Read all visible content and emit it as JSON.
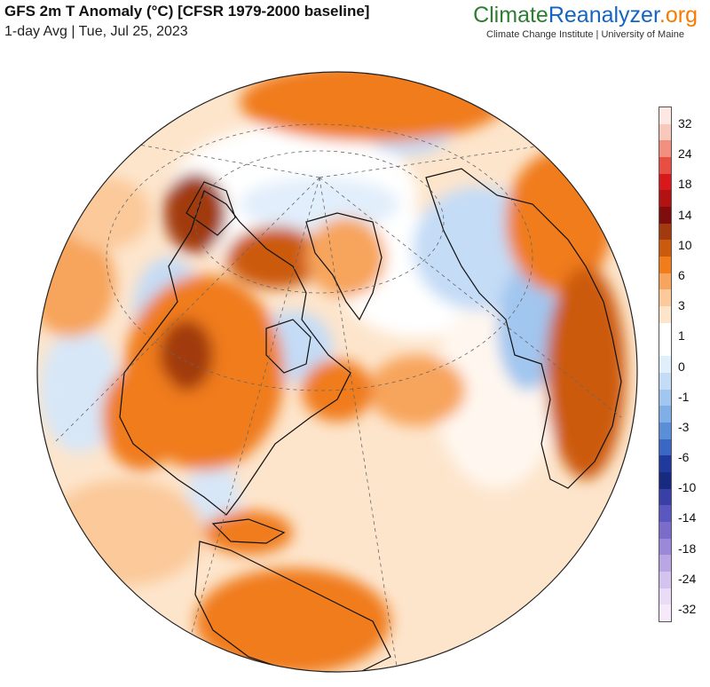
{
  "header": {
    "title": "GFS 2m T Anomaly (°C) [CFSR 1979-2000 baseline]",
    "subtitle": "1-day Avg | Tue, Jul 25, 2023"
  },
  "brand": {
    "part1": "Climate",
    "part2": "Reanalyzer",
    "part3": ".org",
    "tagline": "Climate Change Institute | University of Maine",
    "colors": {
      "climate": "#2e7d32",
      "reanalyzer": "#1565c0",
      "org": "#f57c00"
    }
  },
  "legend": {
    "labels": [
      "32",
      "24",
      "18",
      "14",
      "10",
      "6",
      "3",
      "1",
      "0",
      "-1",
      "-3",
      "-6",
      "-10",
      "-14",
      "-18",
      "-24",
      "-32"
    ],
    "colors": [
      "#fde8e4",
      "#f9c8bc",
      "#f28f7e",
      "#e84f43",
      "#d7191c",
      "#b31212",
      "#7f0d0d",
      "#a13a0e",
      "#cc5a0e",
      "#f07c1a",
      "#f7a45c",
      "#fbc99a",
      "#fde5cc",
      "#ffffff",
      "#ffffff",
      "#e1eefb",
      "#c4dcf6",
      "#a1c6ef",
      "#7fafe6",
      "#5a8fd8",
      "#3a66c4",
      "#1f3a9c",
      "#182a80",
      "#3a3fa8",
      "#5a58c0",
      "#7b6ccc",
      "#9b88d8",
      "#bba6e4",
      "#d4c3ee",
      "#eadcf6",
      "#f6eafa"
    ]
  },
  "map": {
    "type": "orthographic temperature-anomaly map",
    "ocean_base_color": "#fde5cc",
    "land_outline_color": "#111111"
  }
}
